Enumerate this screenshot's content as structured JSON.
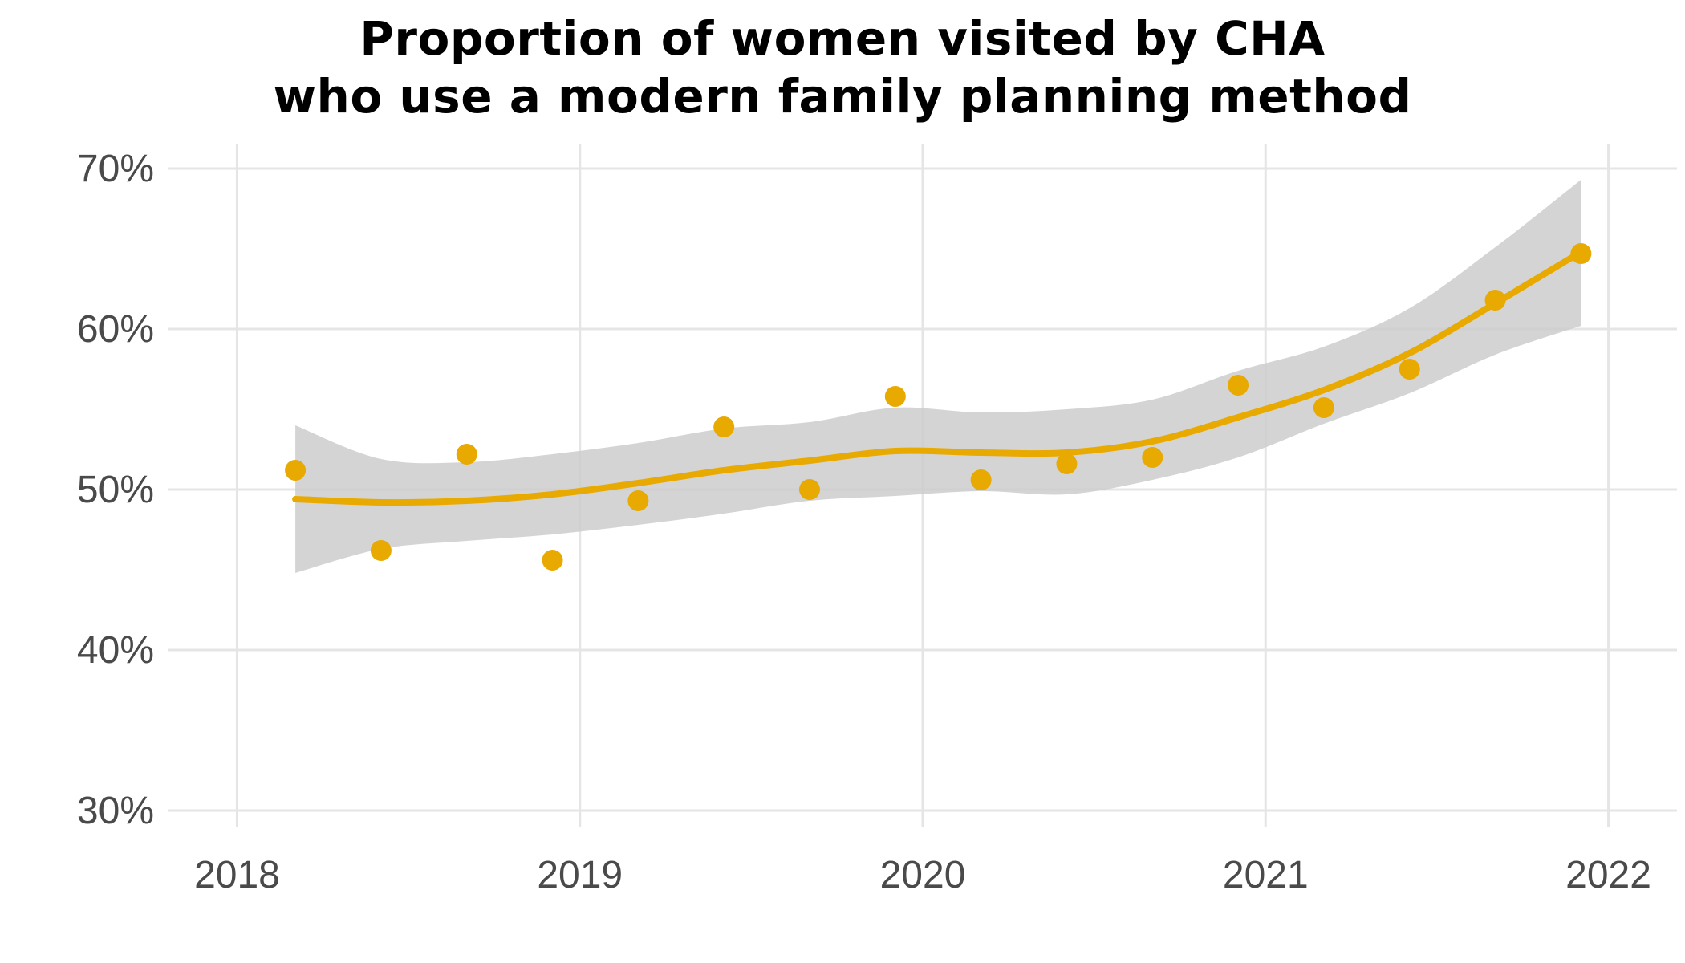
{
  "chart_data": {
    "type": "scatter",
    "title_lines": [
      "Proportion of women visited by CHA",
      "who use a modern family planning method"
    ],
    "xlabel": "",
    "ylabel": "",
    "x_ticks": [
      "2018",
      "2019",
      "2020",
      "2021",
      "2022"
    ],
    "x_tick_values": [
      2018,
      2019,
      2020,
      2021,
      2022
    ],
    "y_ticks": [
      "30%",
      "40%",
      "50%",
      "60%",
      "70%"
    ],
    "y_tick_values": [
      30,
      40,
      50,
      60,
      70
    ],
    "xlim": [
      2017.8,
      2022.2
    ],
    "ylim": [
      29,
      71.5
    ],
    "grid": true,
    "legend": "none",
    "series": [
      {
        "type": "points",
        "color": "#E8A900",
        "x": [
          2018.17,
          2018.42,
          2018.67,
          2018.92,
          2019.17,
          2019.42,
          2019.67,
          2019.92,
          2020.17,
          2020.42,
          2020.67,
          2020.92,
          2021.17,
          2021.42,
          2021.67,
          2021.92
        ],
        "y": [
          51.2,
          46.2,
          52.2,
          45.6,
          49.3,
          53.9,
          50.0,
          55.8,
          50.6,
          51.6,
          52.0,
          56.5,
          55.1,
          57.5,
          61.8,
          64.7
        ]
      },
      {
        "type": "smooth",
        "color": "#E8A900",
        "x": [
          2018.17,
          2018.42,
          2018.67,
          2018.92,
          2019.17,
          2019.42,
          2019.67,
          2019.92,
          2020.17,
          2020.42,
          2020.67,
          2020.92,
          2021.17,
          2021.42,
          2021.67,
          2021.92
        ],
        "y": [
          49.4,
          49.2,
          49.3,
          49.7,
          50.4,
          51.2,
          51.8,
          52.4,
          52.3,
          52.3,
          53.0,
          54.5,
          56.2,
          58.5,
          61.6,
          64.8
        ]
      },
      {
        "type": "confidence_band",
        "color": "#CCCCCC",
        "x": [
          2018.17,
          2018.42,
          2018.67,
          2018.92,
          2019.17,
          2019.42,
          2019.67,
          2019.92,
          2020.17,
          2020.42,
          2020.67,
          2020.92,
          2021.17,
          2021.42,
          2021.67,
          2021.92
        ],
        "lower": [
          44.8,
          46.3,
          46.8,
          47.2,
          47.8,
          48.5,
          49.3,
          49.6,
          49.9,
          49.7,
          50.6,
          52.0,
          54.1,
          56.0,
          58.4,
          60.2
        ],
        "upper": [
          54.0,
          51.9,
          51.7,
          52.2,
          52.9,
          53.8,
          54.2,
          55.1,
          54.8,
          55.0,
          55.6,
          57.4,
          58.9,
          61.3,
          65.1,
          69.3
        ]
      }
    ]
  }
}
